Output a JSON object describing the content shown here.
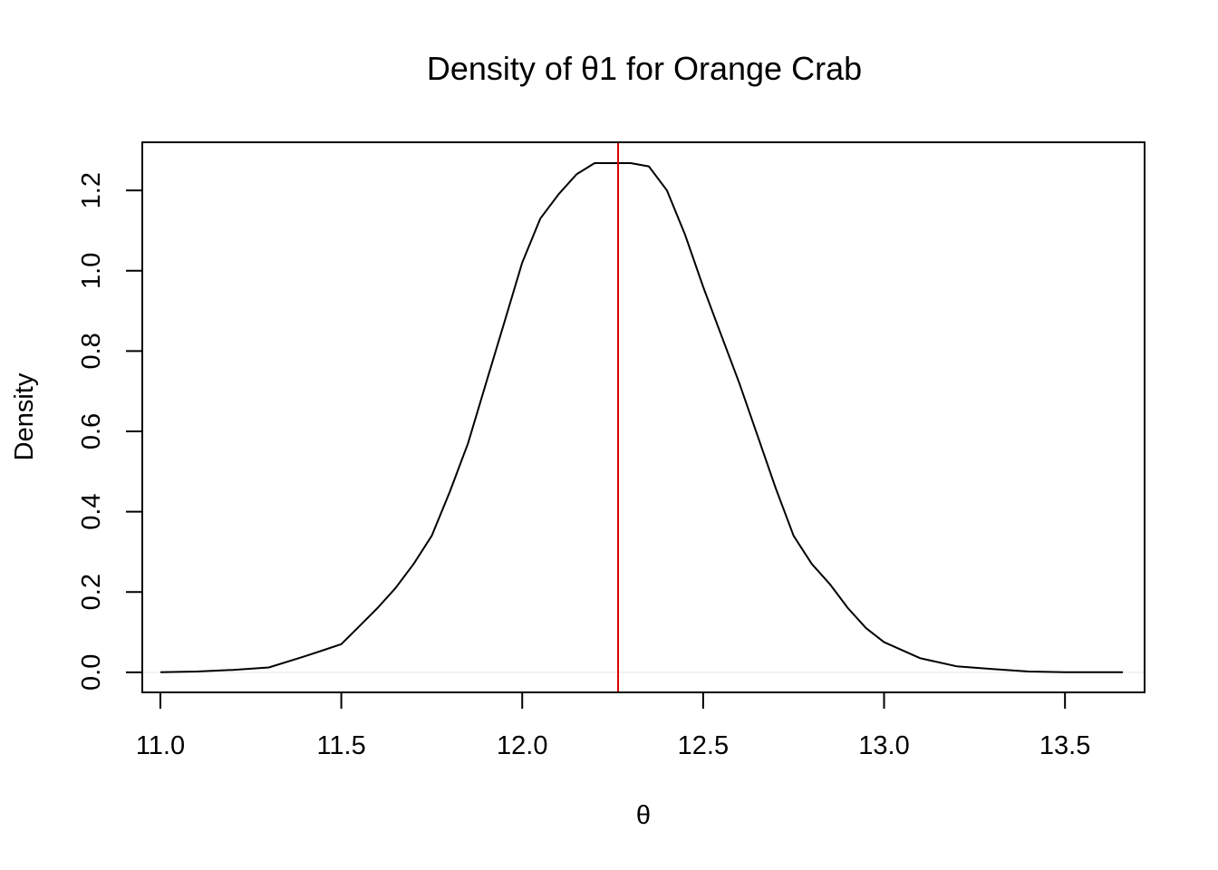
{
  "chart_data": {
    "type": "line",
    "title": "Density of θ1 for Orange Crab",
    "xlabel": "θ",
    "ylabel": "Density",
    "xlim": [
      10.95,
      13.72
    ],
    "ylim": [
      -0.05,
      1.32
    ],
    "x_ticks": [
      11.0,
      11.5,
      12.0,
      12.5,
      13.0,
      13.5
    ],
    "x_tick_labels": [
      "11.0",
      "11.5",
      "12.0",
      "12.5",
      "13.0",
      "13.5"
    ],
    "y_ticks": [
      0.0,
      0.2,
      0.4,
      0.6,
      0.8,
      1.0,
      1.2
    ],
    "y_tick_labels": [
      "0.0",
      "0.2",
      "0.4",
      "0.6",
      "0.8",
      "1.0",
      "1.2"
    ],
    "grid": false,
    "series": [
      {
        "color": "#000000",
        "x": [
          11.0,
          11.1,
          11.2,
          11.3,
          11.4,
          11.45,
          11.5,
          11.55,
          11.6,
          11.65,
          11.7,
          11.75,
          11.8,
          11.85,
          11.9,
          11.95,
          12.0,
          12.05,
          12.1,
          12.15,
          12.2,
          12.25,
          12.3,
          12.35,
          12.4,
          12.45,
          12.5,
          12.55,
          12.6,
          12.65,
          12.7,
          12.75,
          12.8,
          12.85,
          12.9,
          12.95,
          13.0,
          13.1,
          13.2,
          13.3,
          13.4,
          13.5,
          13.6,
          13.66
        ],
        "y": [
          0.0,
          0.002,
          0.006,
          0.012,
          0.04,
          0.055,
          0.07,
          0.115,
          0.16,
          0.21,
          0.27,
          0.34,
          0.45,
          0.57,
          0.72,
          0.87,
          1.02,
          1.13,
          1.19,
          1.24,
          1.268,
          1.268,
          1.268,
          1.26,
          1.2,
          1.09,
          0.96,
          0.84,
          0.72,
          0.59,
          0.46,
          0.34,
          0.27,
          0.22,
          0.16,
          0.11,
          0.075,
          0.035,
          0.015,
          0.008,
          0.002,
          0.0,
          0.0,
          0.0
        ]
      }
    ],
    "vlines": [
      {
        "x": 12.265,
        "color": "#dd0000"
      }
    ],
    "hline": {
      "y": 0.0,
      "color": "#eeeeee"
    }
  }
}
